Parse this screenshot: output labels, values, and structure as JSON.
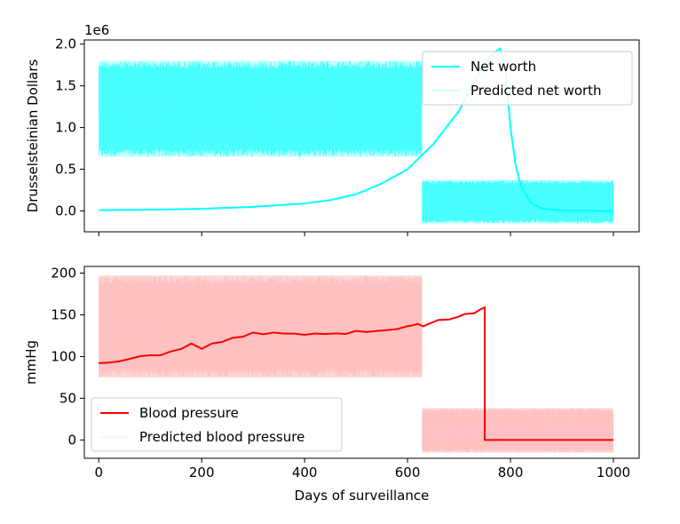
{
  "chart_data": [
    {
      "type": "line",
      "title": "",
      "ylabel": "Drusselsteinian Dollars",
      "xlabel": "",
      "offset_text": "1e6",
      "xlim": [
        -28,
        1050
      ],
      "ylim": [
        -0.25,
        2.05
      ],
      "x_ticks": [
        0,
        200,
        400,
        600,
        800,
        1000
      ],
      "show_x_tick_labels": false,
      "y_ticks": [
        0.0,
        0.5,
        1.0,
        1.5,
        2.0
      ],
      "y_tick_labels": [
        "0.0",
        "0.5",
        "1.0",
        "1.5",
        "2.0"
      ],
      "legend_position": "upper right",
      "series": [
        {
          "name": "Net worth",
          "color": "#00ffff",
          "style": "line",
          "x": [
            0,
            100,
            200,
            300,
            400,
            450,
            500,
            550,
            600,
            650,
            700,
            730,
            760,
            780,
            790,
            800,
            810,
            820,
            840,
            860,
            900,
            1000
          ],
          "y": [
            0.01,
            0.015,
            0.025,
            0.05,
            0.09,
            0.13,
            0.2,
            0.33,
            0.5,
            0.8,
            1.2,
            1.55,
            1.85,
            1.95,
            1.7,
            1.0,
            0.55,
            0.3,
            0.1,
            0.03,
            0.005,
            0.0
          ]
        },
        {
          "name": "Predicted net worth",
          "color": "#00ffff",
          "style": "noise-band",
          "segments": [
            {
              "x_start": 0,
              "x_end": 628,
              "low": 0.65,
              "high": 1.8
            },
            {
              "x_start": 628,
              "x_end": 1000,
              "low": -0.15,
              "high": 0.37
            }
          ]
        }
      ]
    },
    {
      "type": "line",
      "title": "",
      "ylabel": "mmHg",
      "xlabel": "Days of surveillance",
      "xlim": [
        -28,
        1050
      ],
      "ylim": [
        -22,
        208
      ],
      "x_ticks": [
        0,
        200,
        400,
        600,
        800,
        1000
      ],
      "x_tick_labels": [
        "0",
        "200",
        "400",
        "600",
        "800",
        "1000"
      ],
      "show_x_tick_labels": true,
      "y_ticks": [
        0,
        50,
        100,
        150,
        200
      ],
      "y_tick_labels": [
        "0",
        "50",
        "100",
        "150",
        "200"
      ],
      "legend_position": "lower left",
      "series": [
        {
          "name": "Blood pressure",
          "color": "#ff0000",
          "style": "line",
          "x": [
            0,
            20,
            40,
            60,
            80,
            100,
            120,
            140,
            160,
            180,
            200,
            220,
            240,
            260,
            280,
            300,
            320,
            340,
            360,
            380,
            400,
            420,
            440,
            460,
            480,
            500,
            520,
            540,
            560,
            580,
            600,
            610,
            620,
            630,
            640,
            660,
            680,
            700,
            710,
            720,
            730,
            740,
            750,
            750,
            1000
          ],
          "y": [
            91,
            93,
            94,
            97,
            100,
            102,
            103,
            106,
            110,
            115,
            110,
            116,
            119,
            122,
            125,
            128,
            127,
            129,
            126,
            128,
            127,
            127,
            128,
            129,
            128,
            130,
            130,
            132,
            131,
            132,
            135,
            138,
            140,
            137,
            139,
            144,
            145,
            148,
            152,
            150,
            153,
            155,
            158,
            0,
            0
          ]
        },
        {
          "name": "Predicted blood pressure",
          "color": "#ffb6b6",
          "style": "noise-band",
          "segments": [
            {
              "x_start": 0,
              "x_end": 628,
              "low": 75,
              "high": 197
            },
            {
              "x_start": 628,
              "x_end": 1000,
              "low": -15,
              "high": 38
            }
          ]
        }
      ]
    }
  ]
}
